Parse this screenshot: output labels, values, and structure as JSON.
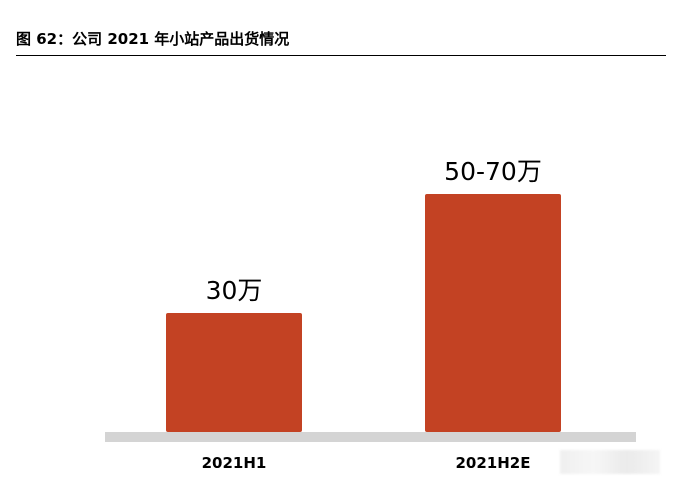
{
  "figure": {
    "title": "图 62：公司 2021 年小站产品出货情况"
  },
  "colors": {
    "bar": "#C34223",
    "baseline": "#D4D4D4",
    "text": "#000000"
  },
  "chart_data": {
    "type": "bar",
    "categories": [
      "2021H1",
      "2021H2E"
    ],
    "values": [
      30,
      60
    ],
    "range_high": [
      30,
      70
    ],
    "data_labels": [
      "30万",
      "50-70万"
    ],
    "unit": "万",
    "title": "",
    "xlabel": "",
    "ylabel": "",
    "ylim": [
      0,
      60
    ],
    "grid": false,
    "legend": "none"
  }
}
